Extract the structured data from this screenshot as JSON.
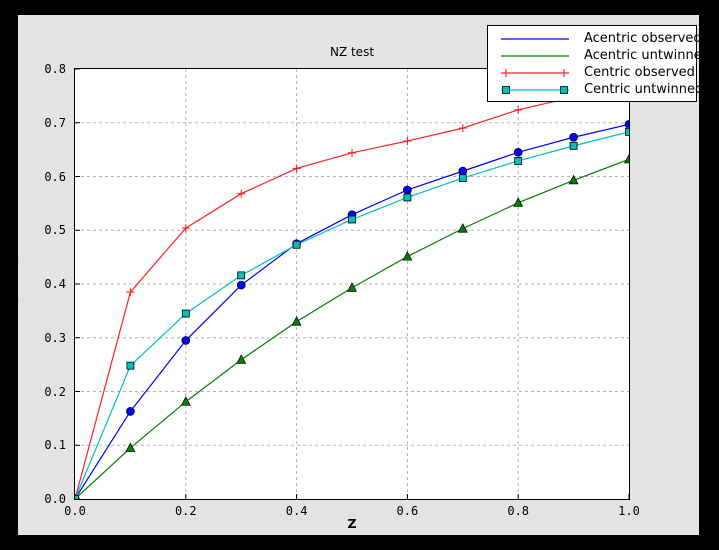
{
  "window": {
    "outer_background": "#000000",
    "figure_background": "#e3e3e3",
    "axes_background": "#ffffff"
  },
  "chart_data": {
    "type": "line",
    "title": "NZ test",
    "xlabel": "Z",
    "ylabel": "P(Z>=z)",
    "xlim": [
      0.0,
      1.0
    ],
    "ylim": [
      0.0,
      0.8
    ],
    "xtick_labels": [
      "0.0",
      "0.2",
      "0.4",
      "0.6",
      "0.8",
      "1.0"
    ],
    "xtick_values": [
      0.0,
      0.2,
      0.4,
      0.6,
      0.8,
      1.0
    ],
    "ytick_labels": [
      "0.0",
      "0.1",
      "0.2",
      "0.3",
      "0.4",
      "0.5",
      "0.6",
      "0.7",
      "0.8"
    ],
    "ytick_values": [
      0.0,
      0.1,
      0.2,
      0.3,
      0.4,
      0.5,
      0.6,
      0.7,
      0.8
    ],
    "grid": true,
    "grid_color": "#b3b3b3",
    "legend_position": "upper right",
    "x": [
      0.0,
      0.1,
      0.2,
      0.3,
      0.4,
      0.5,
      0.6,
      0.7,
      0.8,
      0.9,
      1.0
    ],
    "series": [
      {
        "name": "Acentric observed",
        "color": "#0000ff",
        "marker": "circle",
        "legend_marker": "none",
        "values": [
          0.0,
          0.163,
          0.295,
          0.398,
          0.475,
          0.529,
          0.575,
          0.61,
          0.645,
          0.673,
          0.697
        ]
      },
      {
        "name": "Acentric untwinned",
        "color": "#007f00",
        "marker": "triangle",
        "legend_marker": "none",
        "values": [
          0.0,
          0.095,
          0.181,
          0.259,
          0.33,
          0.393,
          0.451,
          0.503,
          0.551,
          0.593,
          0.632
        ]
      },
      {
        "name": "Centric observed",
        "color": "#ff2020",
        "marker": "plus",
        "legend_marker": "plus",
        "values": [
          0.0,
          0.385,
          0.504,
          0.568,
          0.615,
          0.644,
          0.666,
          0.69,
          0.724,
          0.748,
          0.763
        ]
      },
      {
        "name": "Centric untwinned",
        "color": "#00bfbf",
        "marker": "square",
        "legend_marker": "square",
        "values": [
          0.0,
          0.248,
          0.345,
          0.416,
          0.473,
          0.52,
          0.561,
          0.597,
          0.629,
          0.657,
          0.683
        ]
      }
    ]
  }
}
